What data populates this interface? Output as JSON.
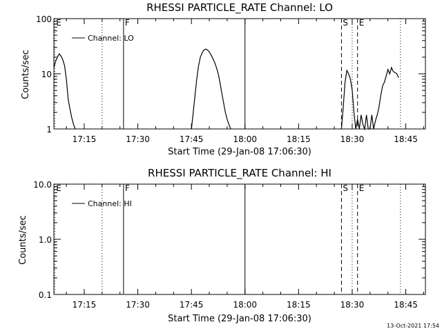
{
  "figure_stamp": "13-Oct-2021 17:54",
  "colors": {
    "background": "#ffffff",
    "foreground": "#000000"
  },
  "chart_data": [
    {
      "type": "line",
      "title": "RHESSI PARTICLE_RATE Channel: LO",
      "xlabel": "Start Time (29-Jan-08 17:06:30)",
      "ylabel": "Counts/sec",
      "y_scale": "log",
      "ylim": [
        1,
        100
      ],
      "y_ticks": [
        1,
        10,
        100
      ],
      "y_tick_labels": [
        "1",
        "10",
        "100"
      ],
      "xlim": [
        "17:06:30",
        "18:50:30"
      ],
      "x_ticks": [
        "17:15",
        "17:30",
        "17:45",
        "18:00",
        "18:15",
        "18:30",
        "18:45"
      ],
      "x_tick_labels": [
        "17:15",
        "17:30",
        "17:45",
        "18:00",
        "18:15",
        "18:30",
        "18:45"
      ],
      "legend": {
        "position": "top-left",
        "entries": [
          "Channel: LO"
        ]
      },
      "grid": false,
      "markers": [
        {
          "time": "17:06:45",
          "style": "dotted",
          "label": "E"
        },
        {
          "time": "17:20:00",
          "style": "dotted",
          "label": ""
        },
        {
          "time": "17:26:00",
          "style": "solid",
          "label": "F"
        },
        {
          "time": "18:00:00",
          "style": "solid",
          "label": ""
        },
        {
          "time": "18:27:00",
          "style": "dashed",
          "label": "S"
        },
        {
          "time": "18:31:30",
          "style": "dashed",
          "label": "E"
        },
        {
          "time": "18:30:00",
          "style": "dotted",
          "label": ""
        },
        {
          "time": "18:43:30",
          "style": "dotted",
          "label": ""
        }
      ],
      "series": [
        {
          "name": "Channel: LO",
          "segments": [
            {
              "x": [
                "17:06:30",
                "17:07:00",
                "17:07:30",
                "17:08:00",
                "17:08:30",
                "17:09:00",
                "17:09:30",
                "17:10:00",
                "17:10:30",
                "17:11:00",
                "17:11:30",
                "17:12:00",
                "17:12:30"
              ],
              "y": [
                13,
                17,
                20,
                23,
                21,
                18,
                14,
                8,
                3.5,
                2.3,
                1.6,
                1.2,
                1.0
              ]
            },
            {
              "x": [
                "17:45:00",
                "17:45:30",
                "17:46:00",
                "17:46:30",
                "17:47:00",
                "17:47:30",
                "17:48:00",
                "17:48:30",
                "17:49:00",
                "17:49:30",
                "17:50:00",
                "17:50:30",
                "17:51:00",
                "17:51:30",
                "17:52:00",
                "17:52:30",
                "17:53:00",
                "17:53:30",
                "17:54:00",
                "17:54:30",
                "17:55:00",
                "17:55:30",
                "17:56:00"
              ],
              "y": [
                1.0,
                2.0,
                4.0,
                8.0,
                14,
                20,
                24,
                27,
                28,
                27,
                25,
                22,
                19,
                16,
                13,
                10,
                7,
                4.5,
                3.0,
                2.0,
                1.5,
                1.2,
                1.0
              ]
            },
            {
              "x": [
                "18:27:00",
                "18:27:30",
                "18:28:00",
                "18:28:30",
                "18:29:00",
                "18:29:30",
                "18:30:00",
                "18:30:30",
                "18:31:00",
                "18:31:30",
                "18:32:00",
                "18:32:30",
                "18:33:00",
                "18:33:30",
                "18:34:00",
                "18:34:30",
                "18:35:00",
                "18:35:30",
                "18:36:00",
                "18:36:30",
                "18:37:00",
                "18:37:30",
                "18:38:00",
                "18:38:30",
                "18:39:00",
                "18:39:30",
                "18:40:00",
                "18:40:30",
                "18:41:00",
                "18:41:30",
                "18:42:00",
                "18:42:30",
                "18:43:00"
              ],
              "y": [
                1.0,
                2.5,
                7.0,
                11.5,
                10.0,
                8.0,
                5.0,
                2.0,
                1.0,
                1.5,
                1.0,
                1.8,
                1.2,
                1.0,
                1.8,
                1.0,
                1.0,
                1.8,
                1.0,
                1.4,
                1.8,
                2.5,
                4.0,
                6.0,
                7.0,
                9.0,
                12,
                10,
                13,
                11,
                10.5,
                10,
                8.5
              ]
            }
          ]
        }
      ]
    },
    {
      "type": "line",
      "title": "RHESSI PARTICLE_RATE Channel: HI",
      "xlabel": "Start Time (29-Jan-08 17:06:30)",
      "ylabel": "Counts/sec",
      "y_scale": "log",
      "ylim": [
        0.1,
        10
      ],
      "y_ticks": [
        0.1,
        1,
        10
      ],
      "y_tick_labels": [
        "0.1",
        "1.0",
        "10.0"
      ],
      "xlim": [
        "17:06:30",
        "18:50:30"
      ],
      "x_ticks": [
        "17:15",
        "17:30",
        "17:45",
        "18:00",
        "18:15",
        "18:30",
        "18:45"
      ],
      "x_tick_labels": [
        "17:15",
        "17:30",
        "17:45",
        "18:00",
        "18:15",
        "18:30",
        "18:45"
      ],
      "legend": {
        "position": "top-left",
        "entries": [
          "Channel: HI"
        ]
      },
      "grid": false,
      "markers": [
        {
          "time": "17:06:45",
          "style": "dotted",
          "label": "E"
        },
        {
          "time": "17:20:00",
          "style": "dotted",
          "label": ""
        },
        {
          "time": "17:26:00",
          "style": "solid",
          "label": "F"
        },
        {
          "time": "18:00:00",
          "style": "solid",
          "label": ""
        },
        {
          "time": "18:27:00",
          "style": "dashed",
          "label": "S"
        },
        {
          "time": "18:31:30",
          "style": "dashed",
          "label": "E"
        },
        {
          "time": "18:30:00",
          "style": "dotted",
          "label": ""
        },
        {
          "time": "18:43:30",
          "style": "dotted",
          "label": ""
        }
      ],
      "series": [
        {
          "name": "Channel: HI",
          "segments": []
        }
      ]
    }
  ]
}
